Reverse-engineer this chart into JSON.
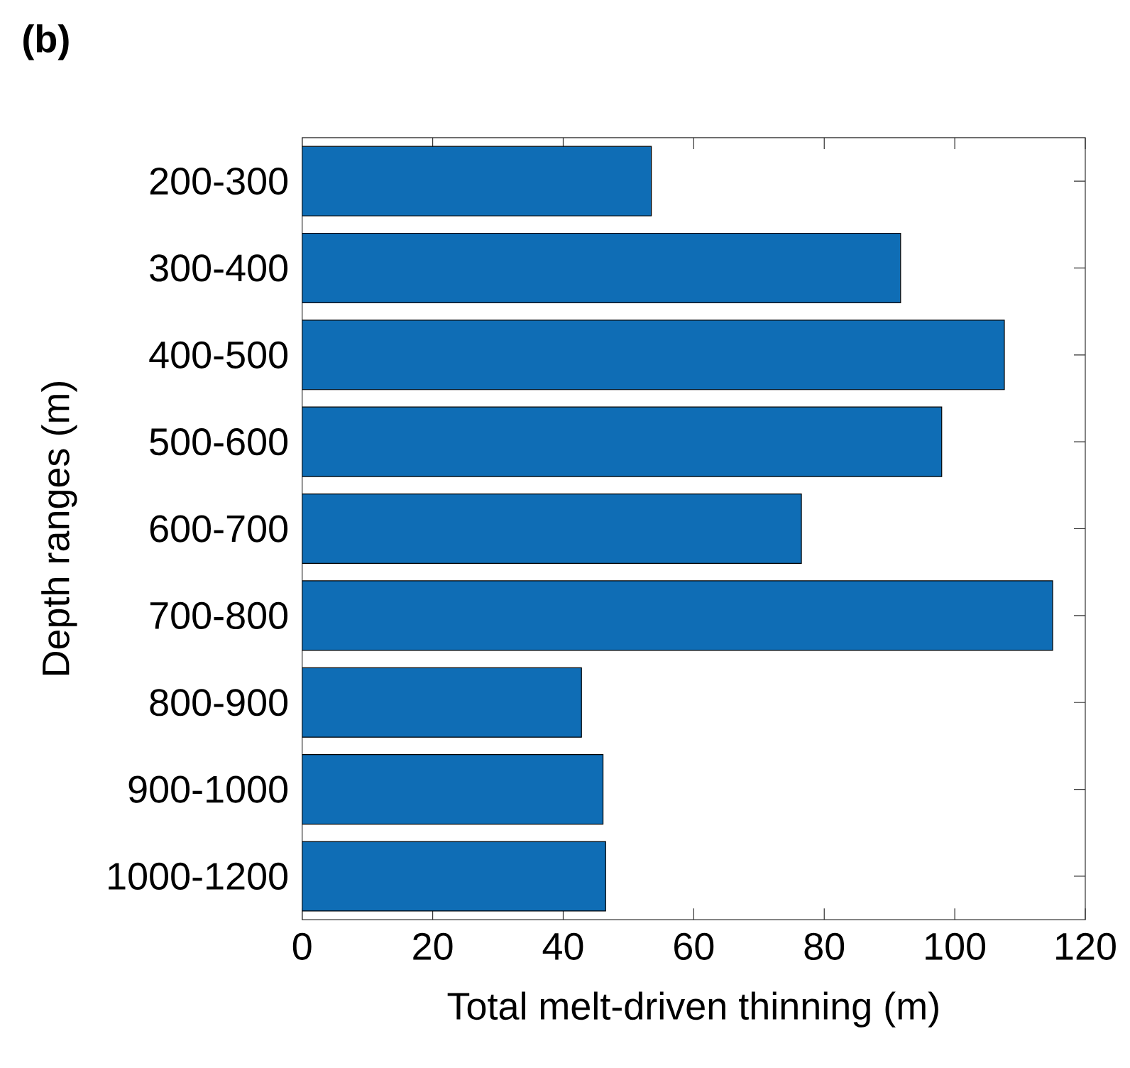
{
  "chart_data": {
    "type": "bar",
    "orientation": "horizontal",
    "title": "(b)",
    "xlabel": "Total melt-driven thinning (m)",
    "ylabel": "Depth ranges (m)",
    "categories": [
      "200-300",
      "300-400",
      "400-500",
      "500-600",
      "600-700",
      "700-800",
      "800-900",
      "900-1000",
      "1000-1200"
    ],
    "values": [
      53.5,
      91.7,
      107.6,
      98,
      76.5,
      115,
      42.8,
      46.1,
      46.5
    ],
    "color": "#0f6db5",
    "xlim": [
      0,
      120
    ],
    "xticks": [
      0,
      20,
      40,
      60,
      80,
      100,
      120
    ],
    "grid": false
  }
}
